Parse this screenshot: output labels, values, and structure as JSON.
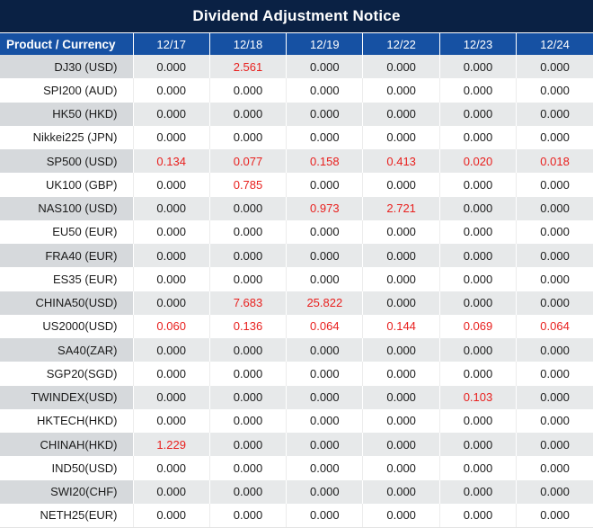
{
  "title": "Dividend Adjustment Notice",
  "columns": [
    "Product / Currency",
    "12/17",
    "12/18",
    "12/19",
    "12/22",
    "12/23",
    "12/24"
  ],
  "rows": [
    {
      "product": "DJ30 (USD)",
      "values": [
        "0.000",
        "2.561",
        "0.000",
        "0.000",
        "0.000",
        "0.000"
      ],
      "red": [
        false,
        true,
        false,
        false,
        false,
        false
      ]
    },
    {
      "product": "SPI200 (AUD)",
      "values": [
        "0.000",
        "0.000",
        "0.000",
        "0.000",
        "0.000",
        "0.000"
      ],
      "red": [
        false,
        false,
        false,
        false,
        false,
        false
      ]
    },
    {
      "product": "HK50 (HKD)",
      "values": [
        "0.000",
        "0.000",
        "0.000",
        "0.000",
        "0.000",
        "0.000"
      ],
      "red": [
        false,
        false,
        false,
        false,
        false,
        false
      ]
    },
    {
      "product": "Nikkei225 (JPN)",
      "values": [
        "0.000",
        "0.000",
        "0.000",
        "0.000",
        "0.000",
        "0.000"
      ],
      "red": [
        false,
        false,
        false,
        false,
        false,
        false
      ]
    },
    {
      "product": "SP500 (USD)",
      "values": [
        "0.134",
        "0.077",
        "0.158",
        "0.413",
        "0.020",
        "0.018"
      ],
      "red": [
        true,
        true,
        true,
        true,
        true,
        true
      ]
    },
    {
      "product": "UK100 (GBP)",
      "values": [
        "0.000",
        "0.785",
        "0.000",
        "0.000",
        "0.000",
        "0.000"
      ],
      "red": [
        false,
        true,
        false,
        false,
        false,
        false
      ]
    },
    {
      "product": "NAS100 (USD)",
      "values": [
        "0.000",
        "0.000",
        "0.973",
        "2.721",
        "0.000",
        "0.000"
      ],
      "red": [
        false,
        false,
        true,
        true,
        false,
        false
      ]
    },
    {
      "product": "EU50 (EUR)",
      "values": [
        "0.000",
        "0.000",
        "0.000",
        "0.000",
        "0.000",
        "0.000"
      ],
      "red": [
        false,
        false,
        false,
        false,
        false,
        false
      ]
    },
    {
      "product": "FRA40 (EUR)",
      "values": [
        "0.000",
        "0.000",
        "0.000",
        "0.000",
        "0.000",
        "0.000"
      ],
      "red": [
        false,
        false,
        false,
        false,
        false,
        false
      ]
    },
    {
      "product": "ES35 (EUR)",
      "values": [
        "0.000",
        "0.000",
        "0.000",
        "0.000",
        "0.000",
        "0.000"
      ],
      "red": [
        false,
        false,
        false,
        false,
        false,
        false
      ]
    },
    {
      "product": "CHINA50(USD)",
      "values": [
        "0.000",
        "7.683",
        "25.822",
        "0.000",
        "0.000",
        "0.000"
      ],
      "red": [
        false,
        true,
        true,
        false,
        false,
        false
      ]
    },
    {
      "product": "US2000(USD)",
      "values": [
        "0.060",
        "0.136",
        "0.064",
        "0.144",
        "0.069",
        "0.064"
      ],
      "red": [
        true,
        true,
        true,
        true,
        true,
        true
      ]
    },
    {
      "product": "SA40(ZAR)",
      "values": [
        "0.000",
        "0.000",
        "0.000",
        "0.000",
        "0.000",
        "0.000"
      ],
      "red": [
        false,
        false,
        false,
        false,
        false,
        false
      ]
    },
    {
      "product": "SGP20(SGD)",
      "values": [
        "0.000",
        "0.000",
        "0.000",
        "0.000",
        "0.000",
        "0.000"
      ],
      "red": [
        false,
        false,
        false,
        false,
        false,
        false
      ]
    },
    {
      "product": "TWINDEX(USD)",
      "values": [
        "0.000",
        "0.000",
        "0.000",
        "0.000",
        "0.103",
        "0.000"
      ],
      "red": [
        false,
        false,
        false,
        false,
        true,
        false
      ]
    },
    {
      "product": "HKTECH(HKD)",
      "values": [
        "0.000",
        "0.000",
        "0.000",
        "0.000",
        "0.000",
        "0.000"
      ],
      "red": [
        false,
        false,
        false,
        false,
        false,
        false
      ]
    },
    {
      "product": "CHINAH(HKD)",
      "values": [
        "1.229",
        "0.000",
        "0.000",
        "0.000",
        "0.000",
        "0.000"
      ],
      "red": [
        true,
        false,
        false,
        false,
        false,
        false
      ]
    },
    {
      "product": "IND50(USD)",
      "values": [
        "0.000",
        "0.000",
        "0.000",
        "0.000",
        "0.000",
        "0.000"
      ],
      "red": [
        false,
        false,
        false,
        false,
        false,
        false
      ]
    },
    {
      "product": "SWI20(CHF)",
      "values": [
        "0.000",
        "0.000",
        "0.000",
        "0.000",
        "0.000",
        "0.000"
      ],
      "red": [
        false,
        false,
        false,
        false,
        false,
        false
      ]
    },
    {
      "product": "NETH25(EUR)",
      "values": [
        "0.000",
        "0.000",
        "0.000",
        "0.000",
        "0.000",
        "0.000"
      ],
      "red": [
        false,
        false,
        false,
        false,
        false,
        false
      ]
    }
  ],
  "colors": {
    "title_bg": "#0a2144",
    "header_bg": "#1651a3",
    "negative_value": "#e8201e",
    "stripe_label_bg": "#d6d9dc",
    "stripe_value_bg": "#e7e9ea",
    "text": "#1b1b1b"
  }
}
